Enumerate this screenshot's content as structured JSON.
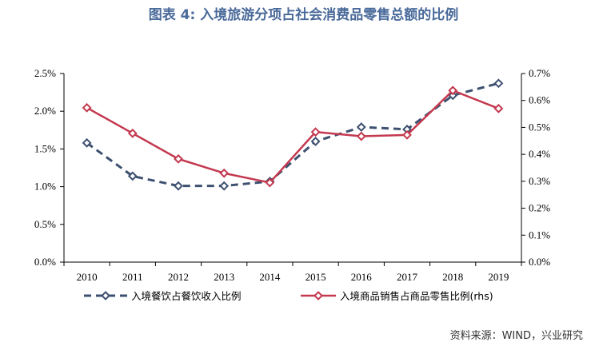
{
  "title": "图表 4:  入境旅游分项占社会消费品零售总额的比例",
  "source": "资料来源：WIND，兴业研究",
  "colors": {
    "series1": "#3d5070",
    "series2": "#c4394f",
    "title": "#4a6a9a"
  },
  "chart_data": {
    "type": "line",
    "x": [
      "2010",
      "2011",
      "2012",
      "2013",
      "2014",
      "2015",
      "2016",
      "2017",
      "2018",
      "2019"
    ],
    "series": [
      {
        "name": "入境餐饮占餐饮收入比例",
        "axis": "left",
        "style": "dashed",
        "marker": "diamond-open",
        "color": "#3d5070",
        "values": [
          1.58,
          1.14,
          1.01,
          1.01,
          1.07,
          1.6,
          1.79,
          1.76,
          2.21,
          2.37
        ]
      },
      {
        "name": "入境商品销售占商品零售比例(rhs)",
        "axis": "right",
        "style": "solid",
        "marker": "diamond-open",
        "color": "#c4394f",
        "values": [
          0.573,
          0.478,
          0.383,
          0.33,
          0.295,
          0.483,
          0.467,
          0.472,
          0.637,
          0.57
        ]
      }
    ],
    "y_left": {
      "ylim": [
        0,
        2.5
      ],
      "ticks": [
        "0.0%",
        "0.5%",
        "1.0%",
        "1.5%",
        "2.0%",
        "2.5%"
      ]
    },
    "y_right": {
      "ylim": [
        0,
        0.7
      ],
      "ticks": [
        "0.0%",
        "0.1%",
        "0.2%",
        "0.3%",
        "0.4%",
        "0.5%",
        "0.6%",
        "0.7%"
      ]
    },
    "grid": false,
    "legend": "bottom"
  }
}
